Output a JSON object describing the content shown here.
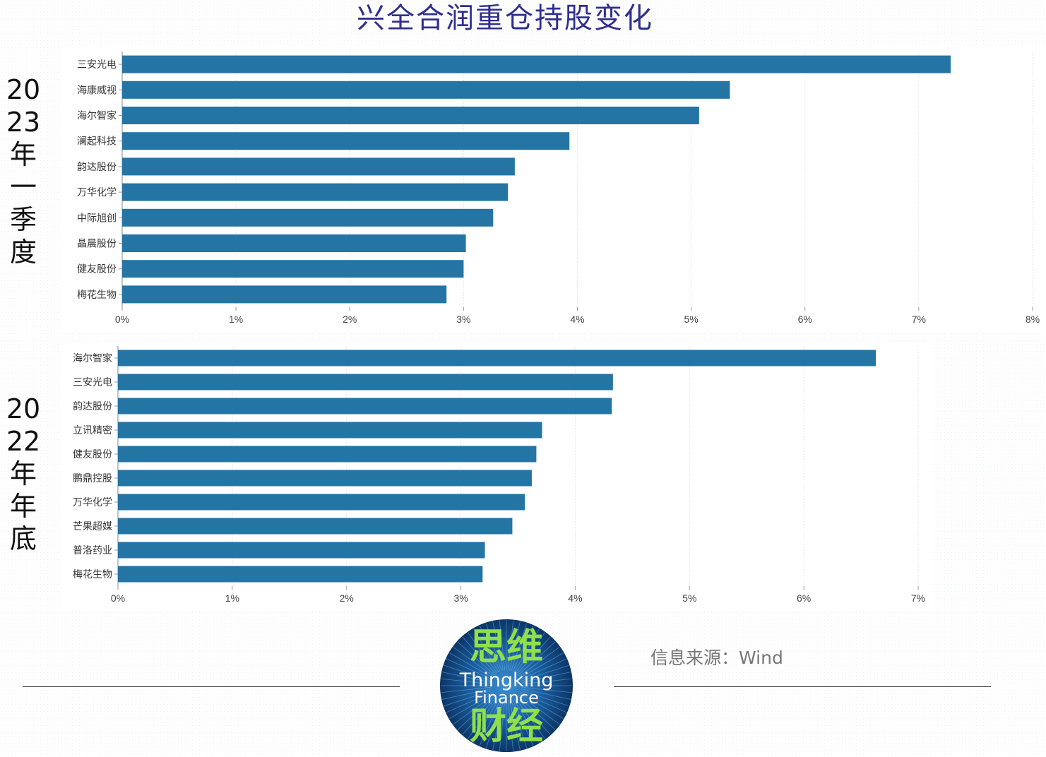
{
  "title": "兴全合润重仓持股变化",
  "chart_data": [
    {
      "type": "bar",
      "orientation": "horizontal",
      "period_label": "2023年一季度",
      "categories": [
        "三安光电",
        "海康威视",
        "海尔智家",
        "澜起科技",
        "韵达股份",
        "万华化学",
        "中际旭创",
        "晶晨股份",
        "健友股份",
        "梅花生物"
      ],
      "values": [
        7.28,
        5.34,
        5.07,
        3.93,
        3.45,
        3.39,
        3.26,
        3.02,
        3.0,
        2.85
      ],
      "xlim": [
        0,
        8
      ],
      "x_ticks": [
        "0%",
        "1%",
        "2%",
        "3%",
        "4%",
        "5%",
        "6%",
        "7%",
        "8%"
      ],
      "bar_color": "#2474a4",
      "grid": true
    },
    {
      "type": "bar",
      "orientation": "horizontal",
      "period_label": "2022年年底",
      "categories": [
        "海尔智家",
        "三安光电",
        "韵达股份",
        "立讯精密",
        "健友股份",
        "鹏鼎控股",
        "万华化学",
        "芒果超媒",
        "普洛药业",
        "梅花生物"
      ],
      "values": [
        6.63,
        4.33,
        4.32,
        3.71,
        3.66,
        3.62,
        3.56,
        3.45,
        3.21,
        3.19
      ],
      "xlim": [
        0,
        7
      ],
      "x_ticks": [
        "0%",
        "1%",
        "2%",
        "3%",
        "4%",
        "5%",
        "6%",
        "7%"
      ],
      "bar_color": "#2474a4",
      "grid": true
    }
  ],
  "labels": {
    "top_period": "20\n23\n年\n一\n季\n度",
    "bottom_period": "20\n22\n年\n年\n底"
  },
  "footer": {
    "source": "信息来源：Wind",
    "logo_top": "思维",
    "logo_mid1": "Thingking",
    "logo_mid2": "Finance",
    "logo_bottom": "财经"
  }
}
